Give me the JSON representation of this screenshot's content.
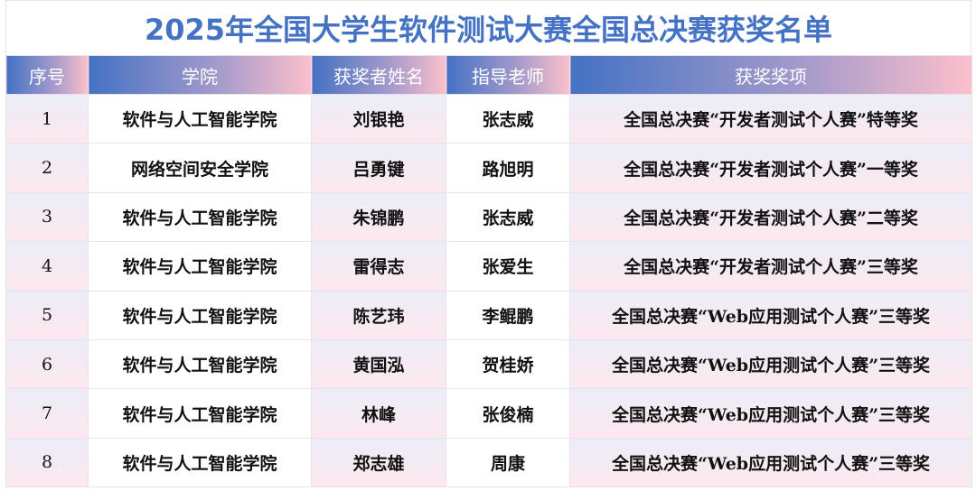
{
  "title": "2025年全国大学生软件测试大赛全国总决赛获奖名单",
  "headers": [
    "序号",
    "学院",
    "获奖者姓名",
    "指导老师",
    "获奖奖项"
  ],
  "rows": [
    [
      "1",
      "软件与人工智能学院",
      "刘银艳",
      "张志威",
      "全国总决赛“开发者测试个人赛”特等奖"
    ],
    [
      "2",
      "网络空间安全学院",
      "吕勇键",
      "路旭明",
      "全国总决赛“开发者测试个人赛”一等奖"
    ],
    [
      "3",
      "软件与人工智能学院",
      "朱锦鹏",
      "张志威",
      "全国总决赛“开发者测试个人赛”二等奖"
    ],
    [
      "4",
      "软件与人工智能学院",
      "雷得志",
      "张爱生",
      "全国总决赛“开发者测试个人赛”三等奖"
    ],
    [
      "5",
      "软件与人工智能学院",
      "陈艺玮",
      "李鲲鹏",
      "全国总决赛“Web应用测试个人赛”三等奖"
    ],
    [
      "6",
      "软件与人工智能学院",
      "黄国泓",
      "贺桂娇",
      "全国总决赛“Web应用测试个人赛”三等奖"
    ],
    [
      "7",
      "软件与人工智能学院",
      "林峰",
      "张俊楠",
      "全国总决赛“Web应用测试个人赛”三等奖"
    ],
    [
      "8",
      "软件与人工智能学院",
      "郑志雄",
      "周康",
      "全国总决赛“Web应用测试个人赛”三等奖"
    ]
  ]
}
